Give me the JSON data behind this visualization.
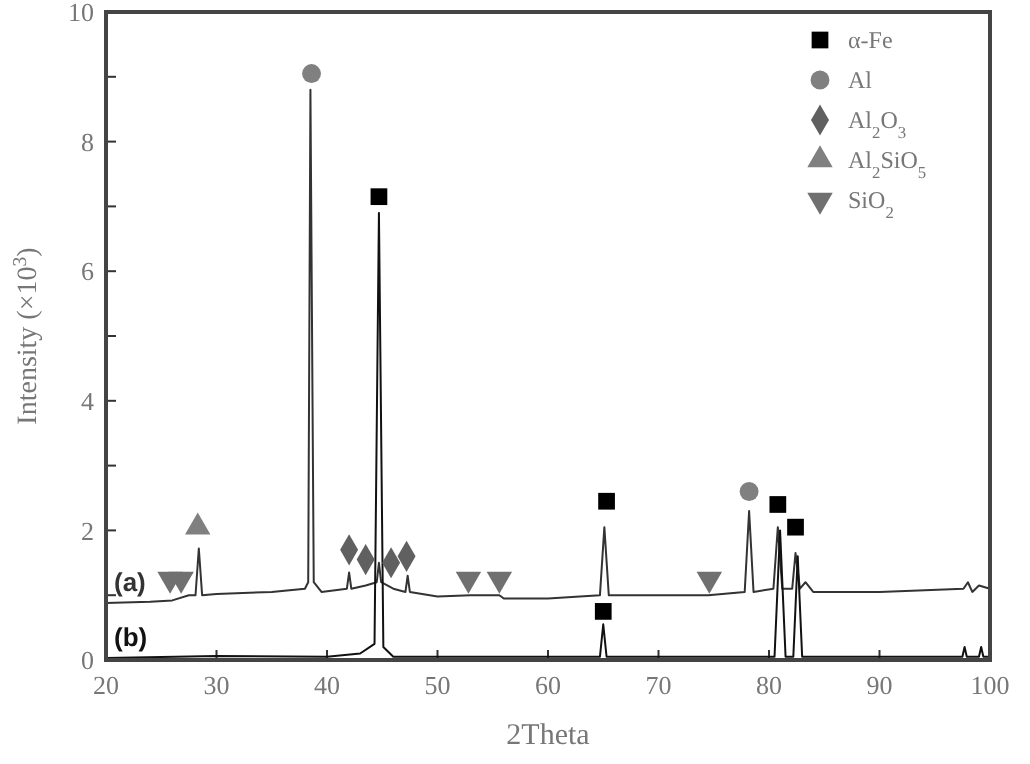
{
  "chart_data": {
    "type": "line",
    "xlabel": "2Theta",
    "ylabel": "Intensity (×10$^{3}$)",
    "xlim": [
      20,
      100
    ],
    "ylim": [
      0,
      10
    ],
    "xticks": [
      20,
      30,
      40,
      50,
      60,
      70,
      80,
      90,
      100
    ],
    "yticks": [
      0,
      {
        "value": 1,
        "label": null
      },
      2,
      {
        "value": 3,
        "label": null
      },
      4,
      {
        "value": 5,
        "label": null
      },
      6,
      {
        "value": 7,
        "label": null
      },
      8,
      {
        "value": 9,
        "label": null
      },
      10
    ],
    "legend": "top right",
    "series": [
      {
        "name": "(a)",
        "color": "#333333",
        "marker": "none",
        "x": [
          20,
          24,
          26,
          27.5,
          28.1,
          28.4,
          28.7,
          30,
          35,
          38,
          38.3,
          38.5,
          38.8,
          39.5,
          41.8,
          42,
          42.2,
          43.5,
          44.5,
          44.7,
          44.9,
          46,
          47.1,
          47.3,
          47.5,
          50,
          53,
          55.6,
          56,
          60,
          64.7,
          65.1,
          65.5,
          70,
          74.5,
          77.8,
          78.2,
          78.6,
          80.4,
          80.8,
          81.2,
          82.1,
          82.4,
          82.8,
          83.3,
          84,
          90,
          97.6,
          98,
          98.4,
          99,
          100
        ],
        "values": [
          0.88,
          0.9,
          0.92,
          1.0,
          1.0,
          1.72,
          1.0,
          1.02,
          1.05,
          1.1,
          1.2,
          8.8,
          1.2,
          1.05,
          1.1,
          1.35,
          1.1,
          1.15,
          1.2,
          1.5,
          1.2,
          1.1,
          1.05,
          1.3,
          1.05,
          0.98,
          1.0,
          1.0,
          0.95,
          0.95,
          1.0,
          2.05,
          1.0,
          1.0,
          1.0,
          1.05,
          2.3,
          1.05,
          1.1,
          2.05,
          1.1,
          1.1,
          1.65,
          1.1,
          1.2,
          1.05,
          1.05,
          1.1,
          1.2,
          1.05,
          1.15,
          1.1
        ]
      },
      {
        "name": "(b)",
        "color": "#111111",
        "marker": "none",
        "x": [
          20,
          30,
          40,
          43,
          44.3,
          44.7,
          45.1,
          46,
          55,
          64.7,
          65,
          65.3,
          70,
          80.5,
          81,
          81.5,
          82.2,
          82.6,
          83,
          90,
          97.5,
          97.7,
          97.9,
          99,
          99.2,
          99.4,
          100
        ],
        "values": [
          0.03,
          0.06,
          0.05,
          0.1,
          0.25,
          6.9,
          0.2,
          0.05,
          0.05,
          0.05,
          0.55,
          0.05,
          0.05,
          0.05,
          2.0,
          0.05,
          0.05,
          1.6,
          0.05,
          0.05,
          0.05,
          0.2,
          0.05,
          0.05,
          0.2,
          0.05,
          0.05
        ]
      },
      {
        "name": "α-Fe",
        "type": "scatter",
        "color": "#000000",
        "marker": "square",
        "x": [
          44.7,
          65.3,
          65.0,
          80.8,
          82.4
        ],
        "values": [
          7.15,
          2.45,
          0.75,
          2.4,
          2.05
        ]
      },
      {
        "name": "Al",
        "type": "scatter",
        "color": "#808080",
        "marker": "circle",
        "x": [
          38.6,
          78.2
        ],
        "values": [
          9.05,
          2.6
        ]
      },
      {
        "name": "Al$_{2}$O$_{3}$",
        "type": "scatter",
        "color": "#606060",
        "marker": "diamond",
        "x": [
          42.0,
          43.5,
          45.8,
          47.2
        ],
        "values": [
          1.7,
          1.55,
          1.5,
          1.6
        ]
      },
      {
        "name": "Al$_{2}$SiO$_{5}$",
        "type": "scatter",
        "color": "#808080",
        "marker": "triangle",
        "x": [
          28.3
        ],
        "values": [
          2.05
        ]
      },
      {
        "name": "SiO$_{2}$",
        "type": "scatter",
        "color": "#707070",
        "marker": "triangle-down",
        "x": [
          25.8,
          26.8,
          52.8,
          55.6,
          74.6
        ],
        "values": [
          1.25,
          1.25,
          1.25,
          1.25,
          1.25
        ]
      }
    ]
  }
}
